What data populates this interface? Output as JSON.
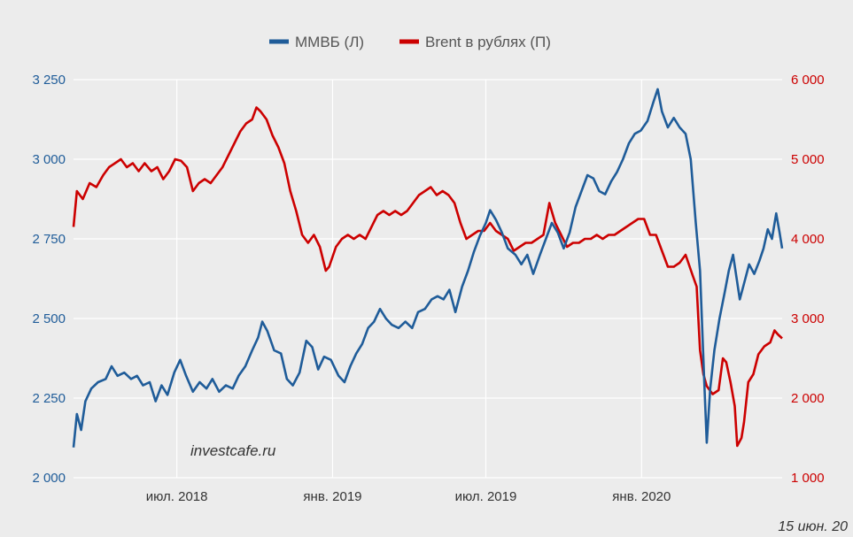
{
  "chart_data": {
    "type": "line",
    "legend_position": "top-center",
    "grid": true,
    "x_range": [
      "2018-03-01",
      "2020-06-15"
    ],
    "x_ticks": [
      {
        "date": "2018-07-01",
        "label": "июл. 2018"
      },
      {
        "date": "2019-01-01",
        "label": "янв. 2019"
      },
      {
        "date": "2019-07-01",
        "label": "июл. 2019"
      },
      {
        "date": "2020-01-01",
        "label": "янв. 2020"
      }
    ],
    "y_left": {
      "range": [
        2000,
        3250
      ],
      "ticks": [
        2000,
        2250,
        2500,
        2750,
        3000,
        3250
      ],
      "tick_labels": [
        "2 000",
        "2 250",
        "2 500",
        "2 750",
        "3 000",
        "3 250"
      ],
      "color": "#1f5c99"
    },
    "y_right": {
      "range": [
        1000,
        6000
      ],
      "ticks": [
        1000,
        2000,
        3000,
        4000,
        5000,
        6000
      ],
      "tick_labels": [
        "1 000",
        "2 000",
        "3 000",
        "4 000",
        "5 000",
        "6 000"
      ],
      "color": "#cc0000"
    },
    "series": [
      {
        "name": "ММВБ (Л)",
        "axis": "left",
        "color": "#1f5c99",
        "points": [
          [
            "2018-03-01",
            2095
          ],
          [
            "2018-03-05",
            2200
          ],
          [
            "2018-03-10",
            2150
          ],
          [
            "2018-03-15",
            2240
          ],
          [
            "2018-03-22",
            2280
          ],
          [
            "2018-03-30",
            2300
          ],
          [
            "2018-04-08",
            2310
          ],
          [
            "2018-04-15",
            2350
          ],
          [
            "2018-04-22",
            2320
          ],
          [
            "2018-04-30",
            2330
          ],
          [
            "2018-05-08",
            2310
          ],
          [
            "2018-05-15",
            2320
          ],
          [
            "2018-05-22",
            2290
          ],
          [
            "2018-05-30",
            2300
          ],
          [
            "2018-06-06",
            2240
          ],
          [
            "2018-06-13",
            2290
          ],
          [
            "2018-06-20",
            2260
          ],
          [
            "2018-06-28",
            2330
          ],
          [
            "2018-07-05",
            2370
          ],
          [
            "2018-07-12",
            2320
          ],
          [
            "2018-07-20",
            2270
          ],
          [
            "2018-07-28",
            2300
          ],
          [
            "2018-08-05",
            2280
          ],
          [
            "2018-08-12",
            2310
          ],
          [
            "2018-08-20",
            2270
          ],
          [
            "2018-08-28",
            2290
          ],
          [
            "2018-09-05",
            2280
          ],
          [
            "2018-09-12",
            2320
          ],
          [
            "2018-09-20",
            2350
          ],
          [
            "2018-09-28",
            2400
          ],
          [
            "2018-10-05",
            2440
          ],
          [
            "2018-10-10",
            2490
          ],
          [
            "2018-10-16",
            2460
          ],
          [
            "2018-10-24",
            2400
          ],
          [
            "2018-11-01",
            2390
          ],
          [
            "2018-11-08",
            2310
          ],
          [
            "2018-11-15",
            2290
          ],
          [
            "2018-11-23",
            2330
          ],
          [
            "2018-12-01",
            2430
          ],
          [
            "2018-12-08",
            2410
          ],
          [
            "2018-12-15",
            2340
          ],
          [
            "2018-12-22",
            2380
          ],
          [
            "2018-12-30",
            2370
          ],
          [
            "2019-01-08",
            2320
          ],
          [
            "2019-01-15",
            2300
          ],
          [
            "2019-01-22",
            2350
          ],
          [
            "2019-01-29",
            2390
          ],
          [
            "2019-02-05",
            2420
          ],
          [
            "2019-02-12",
            2470
          ],
          [
            "2019-02-19",
            2490
          ],
          [
            "2019-02-26",
            2530
          ],
          [
            "2019-03-05",
            2500
          ],
          [
            "2019-03-12",
            2480
          ],
          [
            "2019-03-20",
            2470
          ],
          [
            "2019-03-28",
            2490
          ],
          [
            "2019-04-05",
            2470
          ],
          [
            "2019-04-12",
            2520
          ],
          [
            "2019-04-20",
            2530
          ],
          [
            "2019-04-28",
            2560
          ],
          [
            "2019-05-05",
            2570
          ],
          [
            "2019-05-12",
            2560
          ],
          [
            "2019-05-19",
            2590
          ],
          [
            "2019-05-26",
            2520
          ],
          [
            "2019-06-03",
            2600
          ],
          [
            "2019-06-10",
            2650
          ],
          [
            "2019-06-17",
            2710
          ],
          [
            "2019-06-24",
            2760
          ],
          [
            "2019-07-01",
            2800
          ],
          [
            "2019-07-06",
            2840
          ],
          [
            "2019-07-13",
            2810
          ],
          [
            "2019-07-20",
            2770
          ],
          [
            "2019-07-27",
            2720
          ],
          [
            "2019-08-05",
            2700
          ],
          [
            "2019-08-12",
            2670
          ],
          [
            "2019-08-19",
            2700
          ],
          [
            "2019-08-26",
            2640
          ],
          [
            "2019-09-03",
            2700
          ],
          [
            "2019-09-10",
            2750
          ],
          [
            "2019-09-17",
            2800
          ],
          [
            "2019-09-24",
            2770
          ],
          [
            "2019-10-01",
            2720
          ],
          [
            "2019-10-08",
            2770
          ],
          [
            "2019-10-15",
            2850
          ],
          [
            "2019-10-22",
            2900
          ],
          [
            "2019-10-29",
            2950
          ],
          [
            "2019-11-05",
            2940
          ],
          [
            "2019-11-12",
            2900
          ],
          [
            "2019-11-19",
            2890
          ],
          [
            "2019-11-26",
            2930
          ],
          [
            "2019-12-03",
            2960
          ],
          [
            "2019-12-10",
            3000
          ],
          [
            "2019-12-17",
            3050
          ],
          [
            "2019-12-24",
            3080
          ],
          [
            "2019-12-31",
            3090
          ],
          [
            "2020-01-08",
            3120
          ],
          [
            "2020-01-15",
            3180
          ],
          [
            "2020-01-20",
            3220
          ],
          [
            "2020-01-25",
            3150
          ],
          [
            "2020-02-01",
            3100
          ],
          [
            "2020-02-08",
            3130
          ],
          [
            "2020-02-15",
            3100
          ],
          [
            "2020-02-22",
            3080
          ],
          [
            "2020-02-28",
            3000
          ],
          [
            "2020-03-05",
            2800
          ],
          [
            "2020-03-10",
            2650
          ],
          [
            "2020-03-15",
            2300
          ],
          [
            "2020-03-18",
            2110
          ],
          [
            "2020-03-22",
            2280
          ],
          [
            "2020-03-27",
            2400
          ],
          [
            "2020-04-02",
            2500
          ],
          [
            "2020-04-08",
            2580
          ],
          [
            "2020-04-13",
            2650
          ],
          [
            "2020-04-18",
            2700
          ],
          [
            "2020-04-22",
            2630
          ],
          [
            "2020-04-26",
            2560
          ],
          [
            "2020-05-01",
            2610
          ],
          [
            "2020-05-07",
            2670
          ],
          [
            "2020-05-13",
            2640
          ],
          [
            "2020-05-19",
            2680
          ],
          [
            "2020-05-24",
            2720
          ],
          [
            "2020-05-29",
            2780
          ],
          [
            "2020-06-03",
            2750
          ],
          [
            "2020-06-08",
            2830
          ],
          [
            "2020-06-12",
            2770
          ],
          [
            "2020-06-15",
            2720
          ]
        ]
      },
      {
        "name": "Brent в рублях (П)",
        "axis": "right",
        "color": "#cc0000",
        "points": [
          [
            "2018-03-01",
            4150
          ],
          [
            "2018-03-05",
            4600
          ],
          [
            "2018-03-12",
            4500
          ],
          [
            "2018-03-20",
            4700
          ],
          [
            "2018-03-28",
            4650
          ],
          [
            "2018-04-05",
            4800
          ],
          [
            "2018-04-12",
            4900
          ],
          [
            "2018-04-19",
            4950
          ],
          [
            "2018-04-26",
            5000
          ],
          [
            "2018-05-03",
            4900
          ],
          [
            "2018-05-10",
            4950
          ],
          [
            "2018-05-17",
            4850
          ],
          [
            "2018-05-24",
            4950
          ],
          [
            "2018-06-01",
            4850
          ],
          [
            "2018-06-08",
            4900
          ],
          [
            "2018-06-15",
            4750
          ],
          [
            "2018-06-22",
            4850
          ],
          [
            "2018-06-29",
            5000
          ],
          [
            "2018-07-06",
            4980
          ],
          [
            "2018-07-13",
            4900
          ],
          [
            "2018-07-20",
            4600
          ],
          [
            "2018-07-27",
            4700
          ],
          [
            "2018-08-03",
            4750
          ],
          [
            "2018-08-10",
            4700
          ],
          [
            "2018-08-17",
            4800
          ],
          [
            "2018-08-24",
            4900
          ],
          [
            "2018-08-31",
            5050
          ],
          [
            "2018-09-07",
            5200
          ],
          [
            "2018-09-14",
            5350
          ],
          [
            "2018-09-21",
            5450
          ],
          [
            "2018-09-28",
            5500
          ],
          [
            "2018-10-03",
            5650
          ],
          [
            "2018-10-08",
            5600
          ],
          [
            "2018-10-15",
            5500
          ],
          [
            "2018-10-22",
            5300
          ],
          [
            "2018-10-29",
            5150
          ],
          [
            "2018-11-05",
            4950
          ],
          [
            "2018-11-12",
            4600
          ],
          [
            "2018-11-19",
            4350
          ],
          [
            "2018-11-26",
            4050
          ],
          [
            "2018-12-03",
            3950
          ],
          [
            "2018-12-10",
            4050
          ],
          [
            "2018-12-17",
            3900
          ],
          [
            "2018-12-24",
            3600
          ],
          [
            "2018-12-28",
            3650
          ],
          [
            "2019-01-05",
            3900
          ],
          [
            "2019-01-12",
            4000
          ],
          [
            "2019-01-19",
            4050
          ],
          [
            "2019-01-26",
            4000
          ],
          [
            "2019-02-02",
            4050
          ],
          [
            "2019-02-09",
            4000
          ],
          [
            "2019-02-16",
            4150
          ],
          [
            "2019-02-23",
            4300
          ],
          [
            "2019-03-02",
            4350
          ],
          [
            "2019-03-09",
            4300
          ],
          [
            "2019-03-16",
            4350
          ],
          [
            "2019-03-23",
            4300
          ],
          [
            "2019-03-30",
            4350
          ],
          [
            "2019-04-06",
            4450
          ],
          [
            "2019-04-13",
            4550
          ],
          [
            "2019-04-20",
            4600
          ],
          [
            "2019-04-27",
            4650
          ],
          [
            "2019-05-04",
            4550
          ],
          [
            "2019-05-11",
            4600
          ],
          [
            "2019-05-18",
            4550
          ],
          [
            "2019-05-25",
            4450
          ],
          [
            "2019-06-01",
            4200
          ],
          [
            "2019-06-08",
            4000
          ],
          [
            "2019-06-15",
            4050
          ],
          [
            "2019-06-22",
            4100
          ],
          [
            "2019-06-29",
            4100
          ],
          [
            "2019-07-06",
            4200
          ],
          [
            "2019-07-13",
            4100
          ],
          [
            "2019-07-20",
            4050
          ],
          [
            "2019-07-27",
            4000
          ],
          [
            "2019-08-03",
            3850
          ],
          [
            "2019-08-10",
            3900
          ],
          [
            "2019-08-17",
            3950
          ],
          [
            "2019-08-24",
            3950
          ],
          [
            "2019-08-31",
            4000
          ],
          [
            "2019-09-07",
            4050
          ],
          [
            "2019-09-14",
            4450
          ],
          [
            "2019-09-21",
            4200
          ],
          [
            "2019-09-28",
            4050
          ],
          [
            "2019-10-05",
            3900
          ],
          [
            "2019-10-12",
            3950
          ],
          [
            "2019-10-19",
            3950
          ],
          [
            "2019-10-26",
            4000
          ],
          [
            "2019-11-02",
            4000
          ],
          [
            "2019-11-09",
            4050
          ],
          [
            "2019-11-16",
            4000
          ],
          [
            "2019-11-23",
            4050
          ],
          [
            "2019-11-30",
            4050
          ],
          [
            "2019-12-07",
            4100
          ],
          [
            "2019-12-14",
            4150
          ],
          [
            "2019-12-21",
            4200
          ],
          [
            "2019-12-28",
            4250
          ],
          [
            "2020-01-04",
            4250
          ],
          [
            "2020-01-11",
            4050
          ],
          [
            "2020-01-18",
            4050
          ],
          [
            "2020-01-25",
            3850
          ],
          [
            "2020-02-01",
            3650
          ],
          [
            "2020-02-08",
            3650
          ],
          [
            "2020-02-15",
            3700
          ],
          [
            "2020-02-22",
            3800
          ],
          [
            "2020-03-01",
            3550
          ],
          [
            "2020-03-06",
            3400
          ],
          [
            "2020-03-10",
            2600
          ],
          [
            "2020-03-14",
            2300
          ],
          [
            "2020-03-18",
            2150
          ],
          [
            "2020-03-25",
            2050
          ],
          [
            "2020-04-01",
            2100
          ],
          [
            "2020-04-06",
            2500
          ],
          [
            "2020-04-10",
            2450
          ],
          [
            "2020-04-15",
            2200
          ],
          [
            "2020-04-20",
            1900
          ],
          [
            "2020-04-23",
            1400
          ],
          [
            "2020-04-28",
            1500
          ],
          [
            "2020-05-01",
            1700
          ],
          [
            "2020-05-06",
            2200
          ],
          [
            "2020-05-12",
            2300
          ],
          [
            "2020-05-18",
            2550
          ],
          [
            "2020-05-25",
            2650
          ],
          [
            "2020-06-01",
            2700
          ],
          [
            "2020-06-06",
            2850
          ],
          [
            "2020-06-10",
            2800
          ],
          [
            "2020-06-15",
            2750
          ]
        ]
      }
    ],
    "annotations": {
      "watermark": "investcafe.ru",
      "date_label": "15 июн. 20"
    }
  }
}
